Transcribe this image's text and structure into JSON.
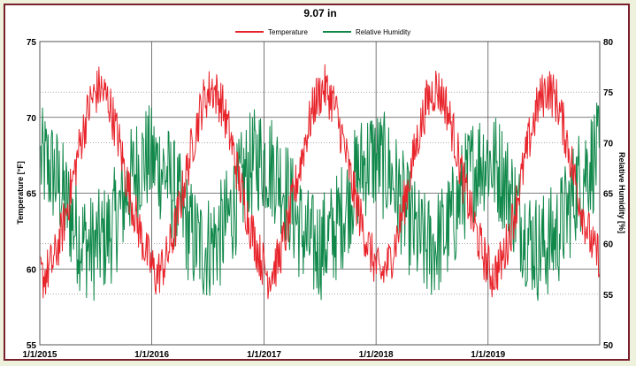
{
  "chart_data": {
    "type": "line",
    "title": "9.07 in",
    "legend_position": "top-center",
    "grid": true,
    "x_axis": {
      "tick_labels": [
        "1/1/2015",
        "1/1/2016",
        "1/1/2017",
        "1/1/2018",
        "1/1/2019"
      ],
      "range": [
        "2015-01-01",
        "2019-12-31"
      ]
    },
    "y_left": {
      "label": "Temperature [°F]",
      "ylim": [
        55,
        75
      ],
      "ticks": [
        55,
        60,
        65,
        70,
        75
      ]
    },
    "y_right": {
      "label": "Relative Humidity [%]",
      "ylim": [
        50,
        80
      ],
      "ticks": [
        50,
        55,
        60,
        65,
        70,
        75,
        80
      ]
    },
    "series": [
      {
        "name": "Temperature",
        "axis": "left",
        "color": "#e8242b",
        "x": [
          "2015-01",
          "2015-02",
          "2015-03",
          "2015-04",
          "2015-05",
          "2015-06",
          "2015-07",
          "2015-08",
          "2015-09",
          "2015-10",
          "2015-11",
          "2015-12",
          "2016-01",
          "2016-02",
          "2016-03",
          "2016-04",
          "2016-05",
          "2016-06",
          "2016-07",
          "2016-08",
          "2016-09",
          "2016-10",
          "2016-11",
          "2016-12",
          "2017-01",
          "2017-02",
          "2017-03",
          "2017-04",
          "2017-05",
          "2017-06",
          "2017-07",
          "2017-08",
          "2017-09",
          "2017-10",
          "2017-11",
          "2017-12",
          "2018-01",
          "2018-02",
          "2018-03",
          "2018-04",
          "2018-05",
          "2018-06",
          "2018-07",
          "2018-08",
          "2018-09",
          "2018-10",
          "2018-11",
          "2018-12",
          "2019-01",
          "2019-02",
          "2019-03",
          "2019-04",
          "2019-05",
          "2019-06",
          "2019-07",
          "2019-08",
          "2019-09",
          "2019-10",
          "2019-11",
          "2019-12"
        ],
        "values": [
          59.5,
          60.5,
          62.5,
          65.5,
          68.5,
          71,
          72,
          71,
          68.5,
          65.5,
          63,
          61,
          59.5,
          60.5,
          62.5,
          65.5,
          68.5,
          71,
          72,
          71,
          68.5,
          65.5,
          63,
          61,
          59.5,
          60.5,
          62.5,
          65.5,
          68.5,
          71,
          72,
          71,
          68.5,
          65.5,
          63,
          61,
          59.5,
          60.5,
          62.5,
          65.5,
          68.5,
          71,
          72,
          71,
          68.5,
          65.5,
          63,
          61,
          59.5,
          60.5,
          62.5,
          65.5,
          68.5,
          71,
          72,
          71,
          68.5,
          65.5,
          63,
          61
        ]
      },
      {
        "name": "Relative Humidity",
        "axis": "right",
        "color": "#10884a",
        "x": [
          "2015-01",
          "2015-02",
          "2015-03",
          "2015-04",
          "2015-05",
          "2015-06",
          "2015-07",
          "2015-08",
          "2015-09",
          "2015-10",
          "2015-11",
          "2015-12",
          "2016-01",
          "2016-02",
          "2016-03",
          "2016-04",
          "2016-05",
          "2016-06",
          "2016-07",
          "2016-08",
          "2016-09",
          "2016-10",
          "2016-11",
          "2016-12",
          "2017-01",
          "2017-02",
          "2017-03",
          "2017-04",
          "2017-05",
          "2017-06",
          "2017-07",
          "2017-08",
          "2017-09",
          "2017-10",
          "2017-11",
          "2017-12",
          "2018-01",
          "2018-02",
          "2018-03",
          "2018-04",
          "2018-05",
          "2018-06",
          "2018-07",
          "2018-08",
          "2018-09",
          "2018-10",
          "2018-11",
          "2018-12",
          "2019-01",
          "2019-02",
          "2019-03",
          "2019-04",
          "2019-05",
          "2019-06",
          "2019-07",
          "2019-08",
          "2019-09",
          "2019-10",
          "2019-11",
          "2019-12"
        ],
        "values": [
          68,
          67,
          65,
          62.5,
          60.5,
          59.5,
          60,
          61,
          63,
          65.5,
          67.5,
          68.5,
          68,
          67,
          65,
          62.5,
          60.5,
          59.5,
          60,
          61,
          63,
          65.5,
          67.5,
          68.5,
          68,
          67,
          65,
          62.5,
          60.5,
          59.5,
          60,
          61,
          63,
          65.5,
          67.5,
          68.5,
          68,
          67,
          65,
          62.5,
          60.5,
          59.5,
          60,
          61,
          63,
          65.5,
          67.5,
          68.5,
          68,
          67,
          65,
          62.5,
          60.5,
          59.5,
          60,
          61,
          63,
          65.5,
          67.5,
          68.5
        ]
      }
    ]
  }
}
